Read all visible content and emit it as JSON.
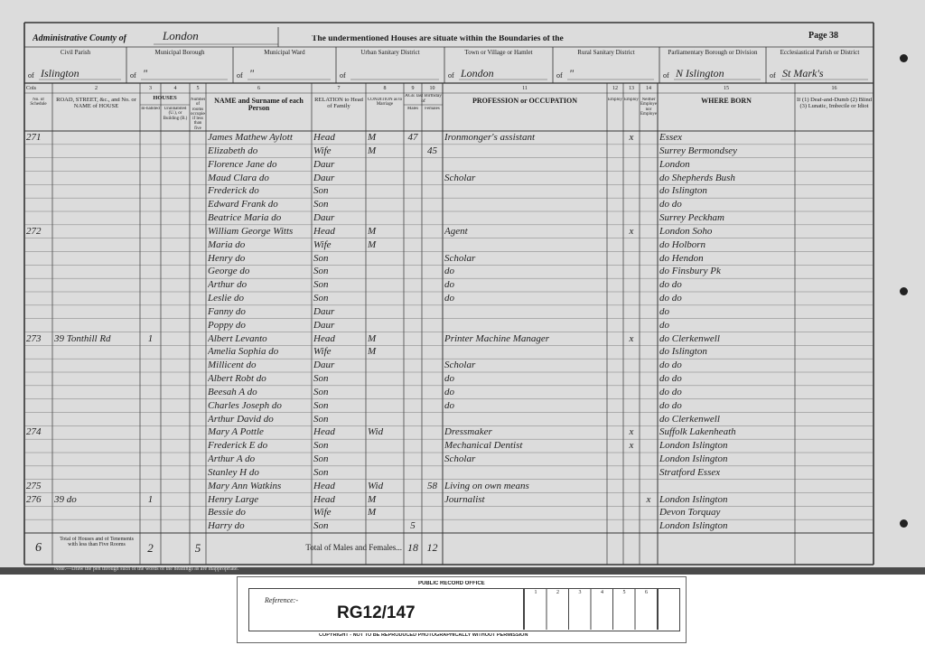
{
  "header": {
    "county_label": "Administrative County of",
    "county": "London",
    "title": "The undermentioned Houses are situate within the Boundaries of the",
    "page": "Page 38",
    "of": "of"
  },
  "districts": [
    {
      "label": "Civil Parish",
      "value": "Islington"
    },
    {
      "label": "Municipal Borough",
      "value": "\""
    },
    {
      "label": "Municipal Ward",
      "value": "\""
    },
    {
      "label": "Urban Sanitary District",
      "value": null
    },
    {
      "label": "Town or Village or Hamlet",
      "value": "London"
    },
    {
      "label": "Rural Sanitary District",
      "value": "\""
    },
    {
      "label": "Parliamentary Borough or Division",
      "value": "N Islington"
    },
    {
      "label": "Ecclesiastical Parish or District",
      "value": "St Mark's"
    }
  ],
  "cols_label": "Cols",
  "houses_label": "HOUSES",
  "age_label": "AGE last Birthday of",
  "columns": [
    {
      "num": "1",
      "label": "No. of Schedule"
    },
    {
      "num": "2",
      "label": "ROAD, STREET, &c., and No. or NAME of HOUSE"
    },
    {
      "num": "3",
      "label": "In-habited"
    },
    {
      "num": "4",
      "label": "Uninhabited (U.), or Building (B.)"
    },
    {
      "num": "5",
      "label": "Number of rooms occupied if less than five"
    },
    {
      "num": "6",
      "label": "NAME and Surname of each Person"
    },
    {
      "num": "7",
      "label": "RELATION to Head of Family"
    },
    {
      "num": "8",
      "label": "CONDITION as to Marriage"
    },
    {
      "num": "9",
      "label": "Males"
    },
    {
      "num": "10",
      "label": "Females"
    },
    {
      "num": "11",
      "label": "PROFESSION or OCCUPATION"
    },
    {
      "num": "12",
      "label": "Employer"
    },
    {
      "num": "13",
      "label": "Employed"
    },
    {
      "num": "14",
      "label": "Neither Employer nor Employed"
    },
    {
      "num": "15",
      "label": "WHERE BORN"
    },
    {
      "num": "16",
      "label": "If (1) Deaf-and-Dumb (2) Blind (3) Lunatic, Imbecile or Idiot"
    }
  ],
  "rows": [
    {
      "s": "271",
      "name": "James Mathew Aylott",
      "rel": "Head",
      "cond": "M",
      "m": "47",
      "occ": "Ironmonger's assistant",
      "emp": "x",
      "born": "Essex"
    },
    {
      "name": "Elizabeth do",
      "rel": "Wife",
      "cond": "M",
      "f": "45",
      "born": "Surrey Bermondsey"
    },
    {
      "name": "Florence Jane do",
      "rel": "Daur",
      "born": "London"
    },
    {
      "name": "Maud Clara do",
      "rel": "Daur",
      "occ": "Scholar",
      "born": "do Shepherds Bush"
    },
    {
      "name": "Frederick do",
      "rel": "Son",
      "born": "do Islington"
    },
    {
      "name": "Edward Frank do",
      "rel": "Son",
      "born": "do do"
    },
    {
      "name": "Beatrice Maria do",
      "rel": "Daur",
      "born": "Surrey Peckham"
    },
    {
      "s": "272",
      "name": "William George Witts",
      "rel": "Head",
      "cond": "M",
      "occ": "Agent",
      "emp": "x",
      "born": "London Soho"
    },
    {
      "name": "Maria do",
      "rel": "Wife",
      "cond": "M",
      "born": "do Holborn"
    },
    {
      "name": "Henry do",
      "rel": "Son",
      "occ": "Scholar",
      "born": "do Hendon"
    },
    {
      "name": "George do",
      "rel": "Son",
      "occ": "do",
      "born": "do Finsbury Pk"
    },
    {
      "name": "Arthur do",
      "rel": "Son",
      "occ": "do",
      "born": "do do"
    },
    {
      "name": "Leslie do",
      "rel": "Son",
      "occ": "do",
      "born": "do do"
    },
    {
      "name": "Fanny do",
      "rel": "Daur",
      "born": "do"
    },
    {
      "name": "Poppy do",
      "rel": "Daur",
      "born": "do"
    },
    {
      "s": "273",
      "addr": "39 Tonthill Rd",
      "inh": "1",
      "name": "Albert Levanto",
      "rel": "Head",
      "cond": "M",
      "occ": "Printer Machine Manager",
      "emp": "x",
      "born": "do Clerkenwell"
    },
    {
      "name": "Amelia Sophia do",
      "rel": "Wife",
      "cond": "M",
      "born": "do Islington"
    },
    {
      "name": "Millicent do",
      "rel": "Daur",
      "occ": "Scholar",
      "born": "do do"
    },
    {
      "name": "Albert Robt do",
      "rel": "Son",
      "occ": "do",
      "born": "do do"
    },
    {
      "name": "Beesah A do",
      "rel": "Son",
      "occ": "do",
      "born": "do do"
    },
    {
      "name": "Charles Joseph do",
      "rel": "Son",
      "occ": "do",
      "born": "do do"
    },
    {
      "name": "Arthur David do",
      "rel": "Son",
      "born": "do Clerkenwell"
    },
    {
      "s": "274",
      "name": "Mary A Pottle",
      "rel": "Head",
      "cond": "Wid",
      "occ": "Dressmaker",
      "emp": "x",
      "born": "Suffolk Lakenheath"
    },
    {
      "name": "Frederick E do",
      "rel": "Son",
      "occ": "Mechanical Dentist",
      "emp": "x",
      "born": "London Islington"
    },
    {
      "name": "Arthur A do",
      "rel": "Son",
      "occ": "Scholar",
      "born": "London Islington"
    },
    {
      "name": "Stanley H do",
      "rel": "Son",
      "born": "Stratford Essex"
    },
    {
      "s": "275",
      "name": "Mary Ann Watkins",
      "rel": "Head",
      "cond": "Wid",
      "f": "58",
      "occ": "Living on own means"
    },
    {
      "s": "276",
      "addr": "39 do",
      "inh": "1",
      "name": "Henry Large",
      "rel": "Head",
      "cond": "M",
      "occ": "Journalist",
      "nei": "x",
      "born": "London Islington"
    },
    {
      "name": "Bessie do",
      "rel": "Wife",
      "cond": "M",
      "born": "Devon Torquay"
    },
    {
      "name": "Harry do",
      "rel": "Son",
      "m": "5",
      "born": "London Islington"
    }
  ],
  "footer": {
    "schedules": "6",
    "houses_label": "Total of Houses and of Tenements with less than Five Rooms",
    "houses": "2",
    "rooms": "5",
    "persons_label": "Total of Males and Females...",
    "males": "18",
    "females": "12",
    "note": "Note.—Draw the pen through such of the words of the headings as are inappropriate."
  },
  "reference": {
    "office": "PUBLIC RECORD OFFICE",
    "label": "Reference:-",
    "ref": "RG12/147",
    "copyright": "COPYRIGHT - NOT TO BE REPRODUCED PHOTOGRAPHICALLY WITHOUT PERMISSION",
    "scale": [
      "1",
      "2",
      "3",
      "4",
      "5",
      "6"
    ]
  }
}
